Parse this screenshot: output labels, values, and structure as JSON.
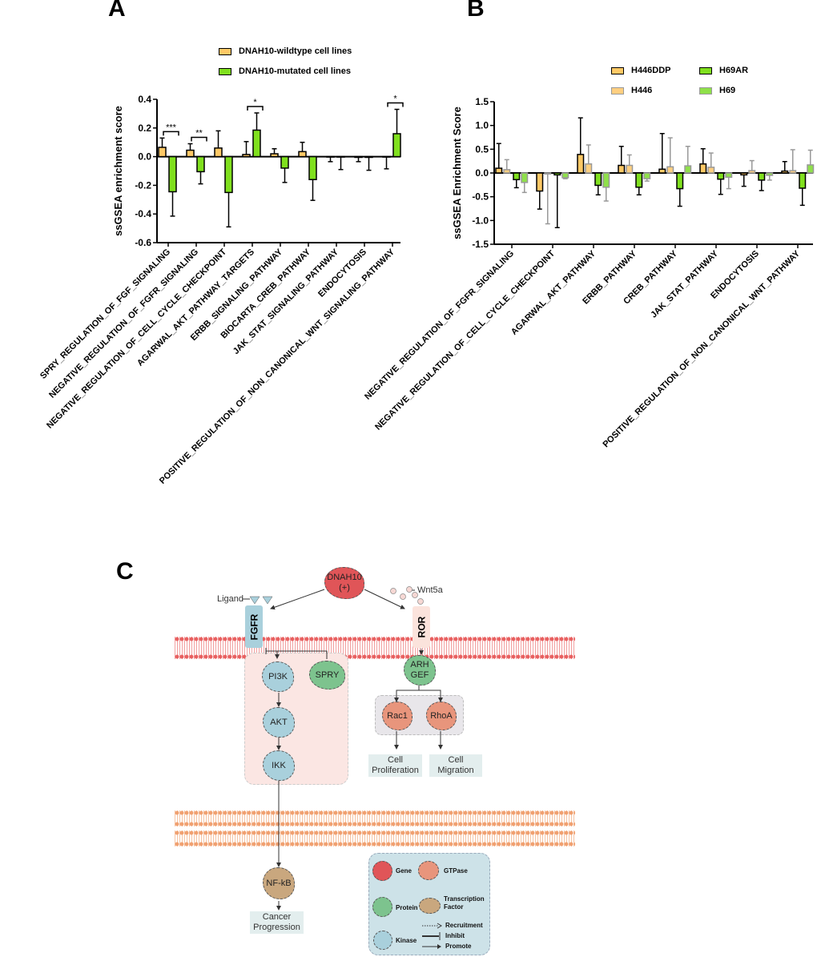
{
  "panels": {
    "a": "A",
    "b": "B",
    "c": "C"
  },
  "colors": {
    "wildtype": "#FFC966",
    "mutated": "#80E01E",
    "H446DDP": "#FFC966",
    "H446": "#FFCF80",
    "H69AR": "#80E01E",
    "H69": "#8FE04A",
    "gene": "#E05558",
    "gtpase": "#E8957C",
    "protein": "#7DC38E",
    "transcription_factor": "#C9A77E",
    "kinase": "#A9D0DC"
  },
  "chart_data": [
    {
      "type": "bar",
      "ylabel": "ssGSEA  enrichment score",
      "ylim": [
        -0.6,
        0.4
      ],
      "yticks": [
        "0.4",
        "0.2",
        "0.0",
        "-0.2",
        "-0.4",
        "-0.6"
      ],
      "grid": false,
      "legend_placement": "top",
      "categories": [
        "SPRY_REGULATION_OF_FGF_SIGNALING",
        "NEGATIVE_REGULATION_OF_FGFR_SIGNALING",
        "NEGATIVE_REGULATION_OF_CELL_CYCLE_CHECKPOINT",
        "AGARWAL_AKT_PATHWAY_TARGETS",
        "ERBB_SIGNALING_PATHWAY",
        "BIOCARTA_CREB_PATHWAY",
        "JAK_STAT_SIGNALING_PATHWAY",
        "ENDOCYTOSIS",
        "POSITIVE_REGULATION_OF_NON_CANONICAL_WNT_SIGNALING_PATHWAY"
      ],
      "series": [
        {
          "name": "DNAH10-wildtype cell lines",
          "values": [
            0.065,
            0.045,
            0.06,
            0.015,
            0.02,
            0.035,
            0.0,
            -0.005,
            0.0
          ],
          "error_ends": [
            0.13,
            0.09,
            0.18,
            0.105,
            0.055,
            0.1,
            -0.035,
            -0.035,
            -0.085
          ]
        },
        {
          "name": "DNAH10-mutated cell lines",
          "values": [
            -0.245,
            -0.105,
            -0.25,
            0.185,
            -0.08,
            -0.16,
            0.0,
            -0.005,
            0.16
          ],
          "error_ends": [
            -0.415,
            -0.19,
            -0.49,
            0.305,
            -0.18,
            -0.305,
            -0.09,
            -0.095,
            0.33
          ]
        }
      ],
      "significance": [
        {
          "category": 0,
          "label": "***"
        },
        {
          "category": 1,
          "label": "**"
        },
        {
          "category": 3,
          "label": "*"
        },
        {
          "category": 8,
          "label": "*"
        }
      ]
    },
    {
      "type": "bar",
      "ylabel": "ssGSEA  Enrichment Score",
      "ylim": [
        -1.5,
        1.5
      ],
      "yticks": [
        "1.5",
        "1.0",
        "0.5",
        "0.0",
        "-0.5",
        "-1.0",
        "-1.5"
      ],
      "grid": false,
      "legend_placement": "top-right",
      "categories": [
        "NEGATIVE_REGULATION_OF_FGFR_SIGNALING",
        "NEGATIVE_REGULATION_OF_CELL_CYCLE_CHECKPOINT",
        "AGARWAL_AKT_PATHWAY",
        "ERBB_PATHWAY",
        "CREB_PATHWAY",
        "JAK_STAT_PATHWAY",
        "ENDOCYTOSIS",
        "POSITIVE_REGULATION_OF_NON_CANONICAL_WNT_PATHWAY"
      ],
      "series": [
        {
          "name": "H446DDP",
          "values": [
            0.1,
            -0.38,
            0.39,
            0.16,
            0.08,
            0.19,
            -0.04,
            0.04
          ],
          "error_ends": [
            0.62,
            -0.76,
            1.16,
            0.56,
            0.83,
            0.51,
            -0.28,
            0.24
          ]
        },
        {
          "name": "H446",
          "values": [
            0.07,
            -0.02,
            0.19,
            0.16,
            0.13,
            0.12,
            0.05,
            0.05
          ],
          "error_ends": [
            0.28,
            -1.07,
            0.59,
            0.38,
            0.74,
            0.42,
            0.26,
            0.49
          ]
        },
        {
          "name": "H69AR",
          "values": [
            -0.14,
            -0.04,
            -0.26,
            -0.3,
            -0.33,
            -0.13,
            -0.15,
            -0.32
          ],
          "error_ends": [
            -0.31,
            -1.15,
            -0.46,
            -0.46,
            -0.7,
            -0.45,
            -0.37,
            -0.68
          ]
        },
        {
          "name": "H69",
          "values": [
            -0.2,
            -0.1,
            -0.3,
            -0.12,
            0.15,
            -0.09,
            -0.05,
            0.17
          ],
          "error_ends": [
            -0.41,
            -0.12,
            -0.59,
            -0.17,
            0.56,
            -0.33,
            -0.15,
            0.48
          ]
        }
      ]
    }
  ],
  "diagram": {
    "dnah10": "DNAH10\n(+)",
    "ligand": "Ligand",
    "wnt5a": "Wnt5a",
    "fgfr": "FGFR",
    "ror": "ROR",
    "pi3k": "PI3K",
    "spry": "SPRY",
    "akt": "AKT",
    "ikk": "IKK",
    "arhgef": "ARH\nGEF",
    "rac1": "Rac1",
    "rhoa": "RhoA",
    "cell_proliferation": "Cell\nProliferation",
    "cell_migration": "Cell\nMigration",
    "nfkb": "NF-kB",
    "cancer_progression": "Cancer\nProgression",
    "legend": {
      "gene": "Gene",
      "gtpase": "GTPase",
      "protein": "Protein",
      "transcription_factor": "Transcription\nFactor",
      "kinase": "Kinase",
      "recruitment": "Recruitment",
      "inhibit": "Inhibit",
      "promote": "Promote"
    }
  }
}
